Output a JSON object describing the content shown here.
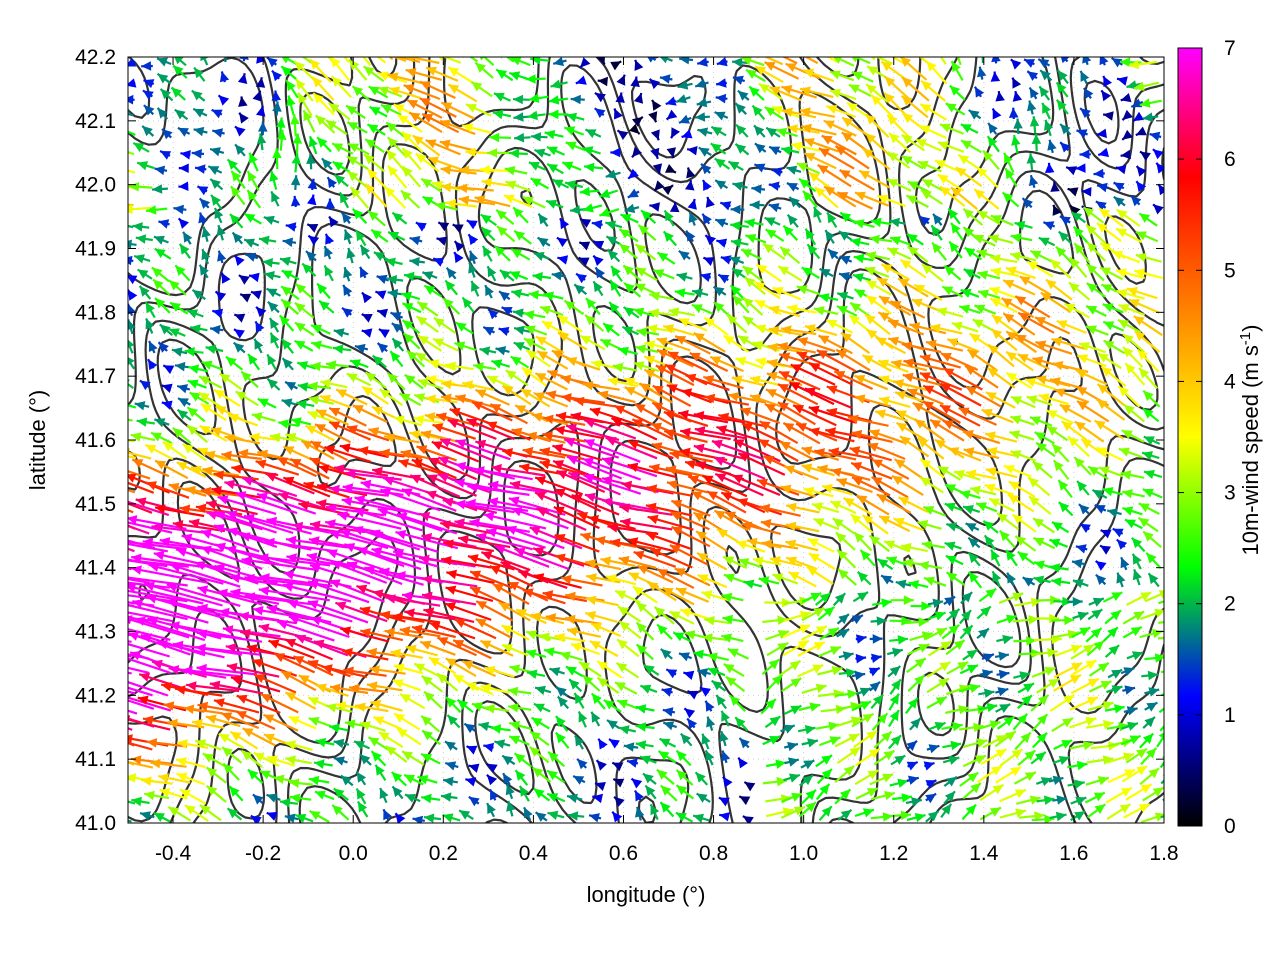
{
  "chart_data": {
    "type": "vector-field",
    "xlabel": "longitude (°)",
    "ylabel": "latitude (°)",
    "xlim": [
      -0.5,
      1.8
    ],
    "ylim": [
      41.0,
      42.2
    ],
    "xticks": [
      "-0.4",
      "-0.2",
      "0.0",
      "0.2",
      "0.4",
      "0.6",
      "0.8",
      "1.0",
      "1.2",
      "1.4",
      "1.6",
      "1.8"
    ],
    "yticks": [
      "41.0",
      "41.1",
      "41.2",
      "41.3",
      "41.4",
      "41.5",
      "41.6",
      "41.7",
      "41.8",
      "41.9",
      "42.0",
      "42.1",
      "42.2"
    ],
    "grid": true,
    "colorbar": {
      "label": "10m-wind speed (m s-1)",
      "label_main": "10m-wind speed (m s",
      "label_sup": "-1",
      "label_end": ")",
      "range": [
        0,
        7
      ],
      "ticks": [
        "0",
        "1",
        "2",
        "3",
        "4",
        "5",
        "6",
        "7"
      ],
      "colormap": [
        "#000000",
        "#0000ff",
        "#00ff00",
        "#ffff00",
        "#ff8000",
        "#ff0000",
        "#ff00ff"
      ]
    },
    "contour_color": "#333333"
  }
}
